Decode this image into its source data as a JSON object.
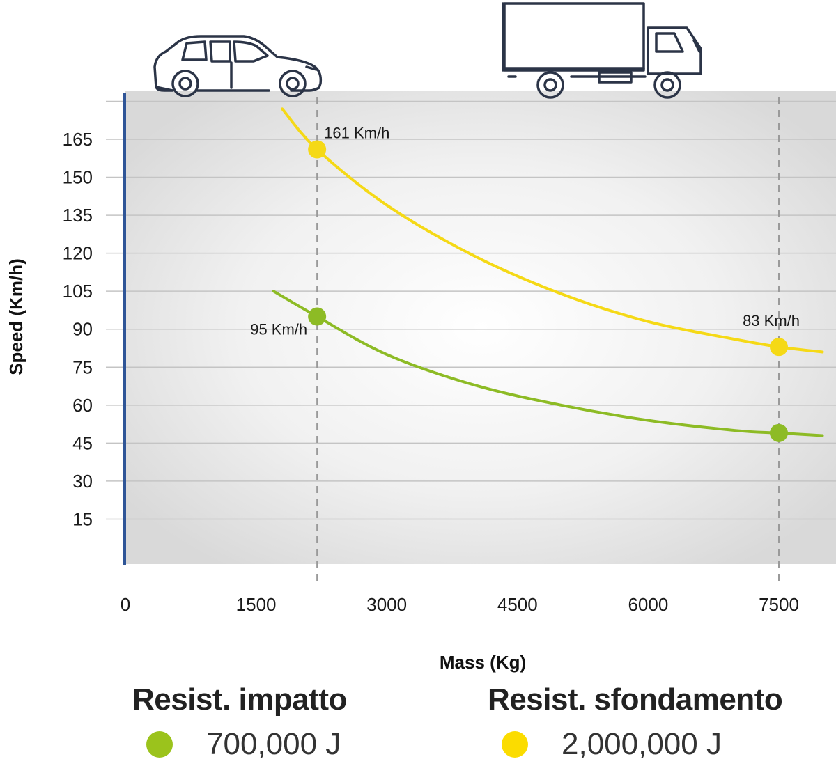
{
  "chart_data": {
    "type": "line",
    "xlabel": "Mass (Kg)",
    "ylabel": "Speed (Km/h)",
    "xlim": [
      0,
      8000
    ],
    "ylim": [
      0,
      180
    ],
    "x_ticks": [
      0,
      1500,
      3000,
      4500,
      6000,
      7500
    ],
    "y_ticks": [
      15,
      30,
      45,
      60,
      75,
      90,
      105,
      120,
      135,
      150,
      165
    ],
    "grid": true,
    "reference_lines_x": [
      2200,
      7500
    ],
    "series": [
      {
        "name": "Resist. sfondamento",
        "energy": "2,000,000 J",
        "color": "#f5d916",
        "x": [
          1800,
          2200,
          3000,
          4000,
          5000,
          6000,
          7000,
          7500,
          8000
        ],
        "y": [
          177,
          161,
          139,
          119,
          104,
          93,
          86,
          83,
          81
        ],
        "highlights": [
          {
            "x": 2200,
            "y": 161,
            "label": "161 Km/h"
          },
          {
            "x": 7500,
            "y": 83,
            "label": "83 Km/h"
          }
        ]
      },
      {
        "name": "Resist. impatto",
        "energy": "700,000 J",
        "color": "#8dbb25",
        "x": [
          1700,
          2200,
          3000,
          4000,
          5000,
          6000,
          7000,
          7500,
          8000
        ],
        "y": [
          105,
          95,
          80,
          68,
          60,
          54,
          50,
          49,
          48
        ],
        "highlights": [
          {
            "x": 2200,
            "y": 95,
            "label": "95 Km/h"
          },
          {
            "x": 7500,
            "y": 49,
            "label": ""
          }
        ]
      }
    ]
  },
  "icons": {
    "car": "car-icon",
    "truck": "truck-icon"
  },
  "legend": {
    "items": [
      {
        "title": "Resist. impatto",
        "value": "700,000 J",
        "color": "#9bc31c"
      },
      {
        "title": "Resist. sfondamento",
        "value": "2,000,000 J",
        "color": "#fbdc00"
      }
    ]
  }
}
